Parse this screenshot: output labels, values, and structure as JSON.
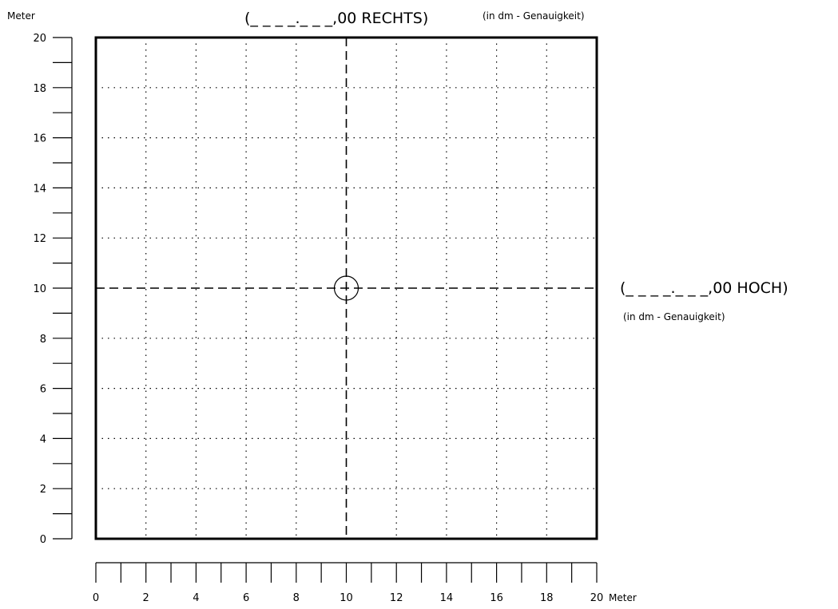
{
  "grid": {
    "y_axis": {
      "unit_label": "Meter",
      "range": [
        0,
        20
      ],
      "tick_labels": [
        "20",
        "18",
        "16",
        "14",
        "12",
        "10",
        "8",
        "6",
        "4",
        "2",
        "0"
      ]
    },
    "x_axis": {
      "unit_label": "Meter",
      "range": [
        0,
        20
      ],
      "tick_labels": [
        "0",
        "2",
        "4",
        "6",
        "8",
        "10",
        "12",
        "14",
        "16",
        "18",
        "20"
      ]
    },
    "top_field": {
      "text": "(_ _ _ _._ _ _,00 RECHTS)",
      "note": "(in dm - Genauigkeit)"
    },
    "right_field": {
      "text": "(_ _ _ _._ _ _,00 HOCH)",
      "note": "(in dm - Genauigkeit)"
    },
    "center_marker": {
      "x": 10,
      "y": 10
    }
  }
}
